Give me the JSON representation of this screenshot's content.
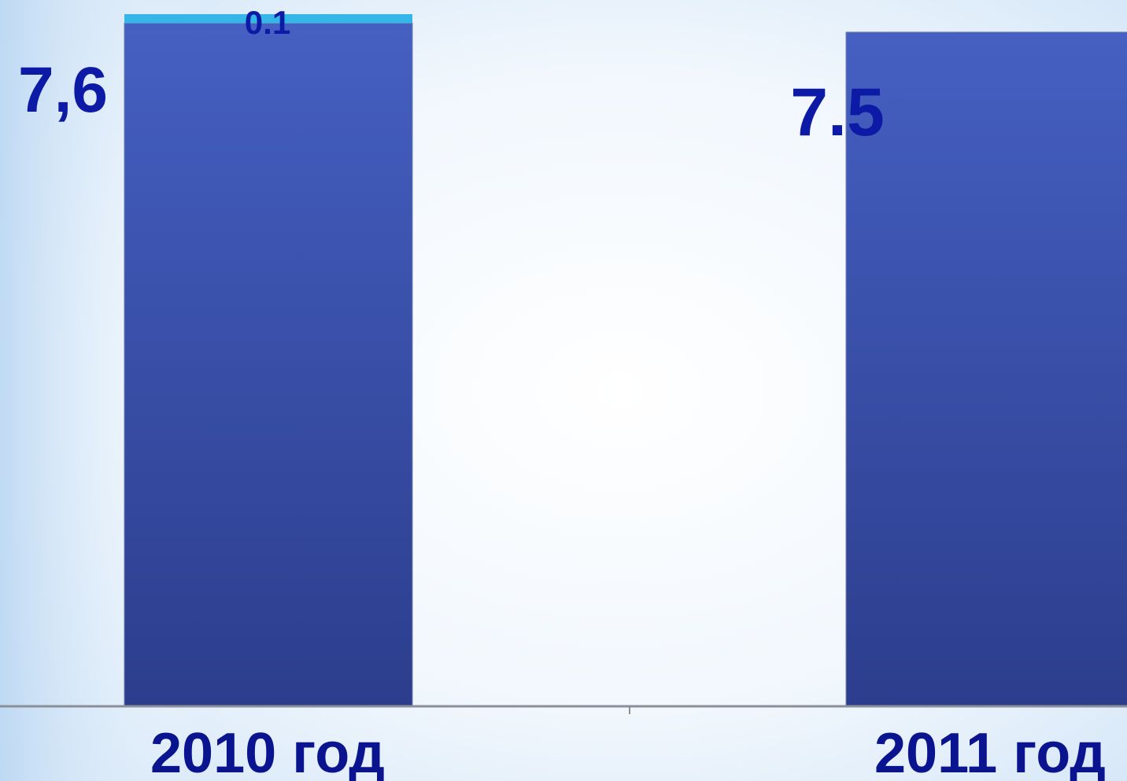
{
  "chart_data": {
    "type": "bar",
    "stacked": true,
    "categories": [
      "2010 год",
      "2011 год"
    ],
    "series": [
      {
        "values": [
          7.6,
          7.5
        ],
        "color": "#3b52b0",
        "value_labels": [
          "7,6",
          "7.5"
        ]
      },
      {
        "values": [
          0.1,
          0
        ],
        "color": "#34b7e8",
        "value_labels": [
          "0.1",
          ""
        ]
      }
    ],
    "title": "",
    "xlabel": "",
    "ylabel": "",
    "ylim": [
      0,
      7.7
    ],
    "grid": false,
    "legend": "none",
    "colors": {
      "label": "#0d1aa6",
      "axis": "#8a8f99",
      "background": "#f4f9fe"
    }
  }
}
